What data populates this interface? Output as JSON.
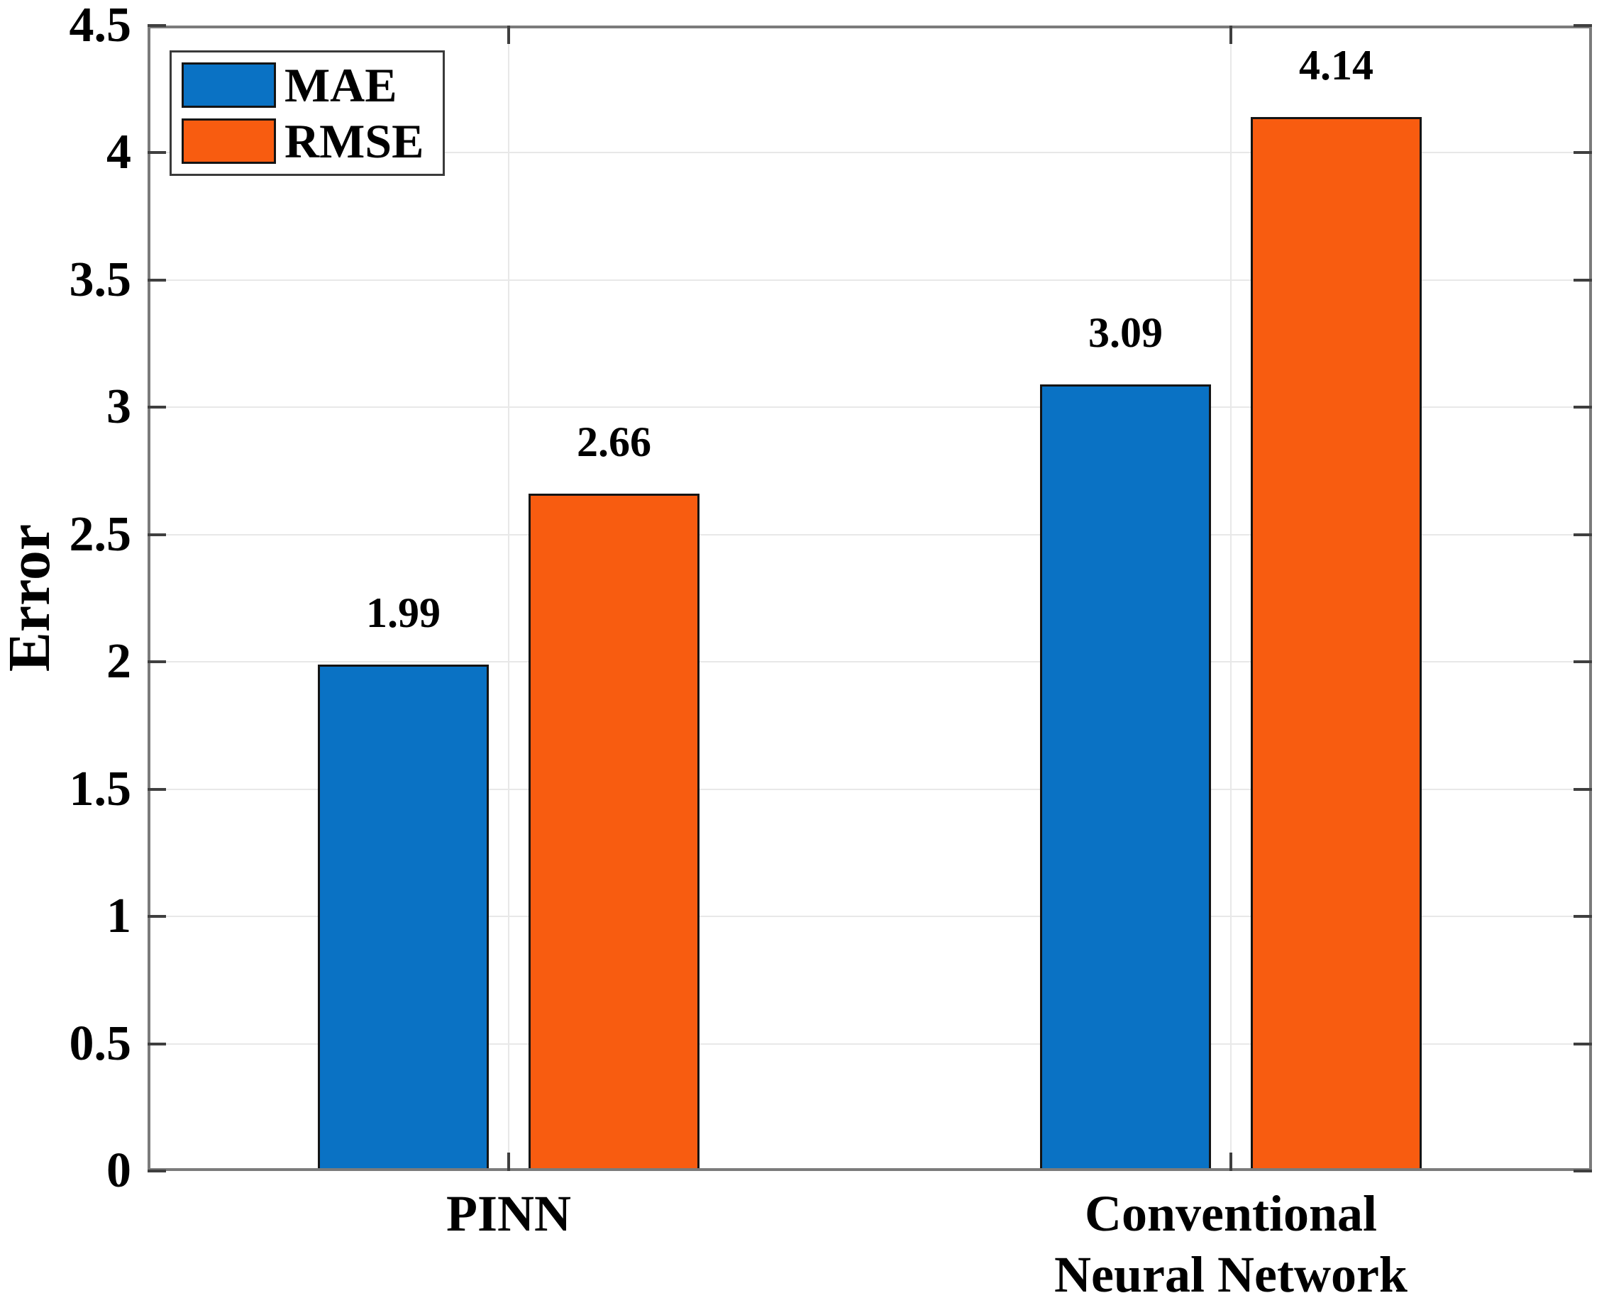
{
  "chart_data": {
    "type": "bar",
    "title": "",
    "xlabel": "",
    "ylabel": "Error",
    "categories": [
      {
        "label": "PINN",
        "lines": [
          "PINN"
        ]
      },
      {
        "label": "Conventional Neural Network",
        "lines": [
          "Conventional",
          "Neural Network"
        ]
      }
    ],
    "series": [
      {
        "name": "MAE",
        "color": "#0a72c4",
        "values": [
          1.99,
          3.09
        ]
      },
      {
        "name": "RMSE",
        "color": "#f85c10",
        "values": [
          2.66,
          4.14
        ]
      }
    ],
    "bar_value_labels": {
      "MAE": [
        "1.99",
        "3.09"
      ],
      "RMSE": [
        "2.66",
        "4.14"
      ]
    },
    "ylim": [
      0,
      4.5
    ],
    "ytick_step": 0.5,
    "ytick_labels": [
      "0",
      "0.5",
      "1",
      "1.5",
      "2",
      "2.5",
      "3",
      "3.5",
      "4",
      "4.5"
    ],
    "grid": {
      "horizontal": true,
      "vertical_at_category_centers": true
    },
    "legend": {
      "position": "top-left",
      "entries": [
        "MAE",
        "RMSE"
      ]
    },
    "colors": {
      "background": "#ffffff",
      "axis_frame": "#7b7b7b",
      "tick": "#3f3f3f",
      "gridline": "#e8e8e8",
      "bar_edge": "#141414",
      "text": "#000000",
      "legend_border": "#3a3a3a"
    }
  }
}
